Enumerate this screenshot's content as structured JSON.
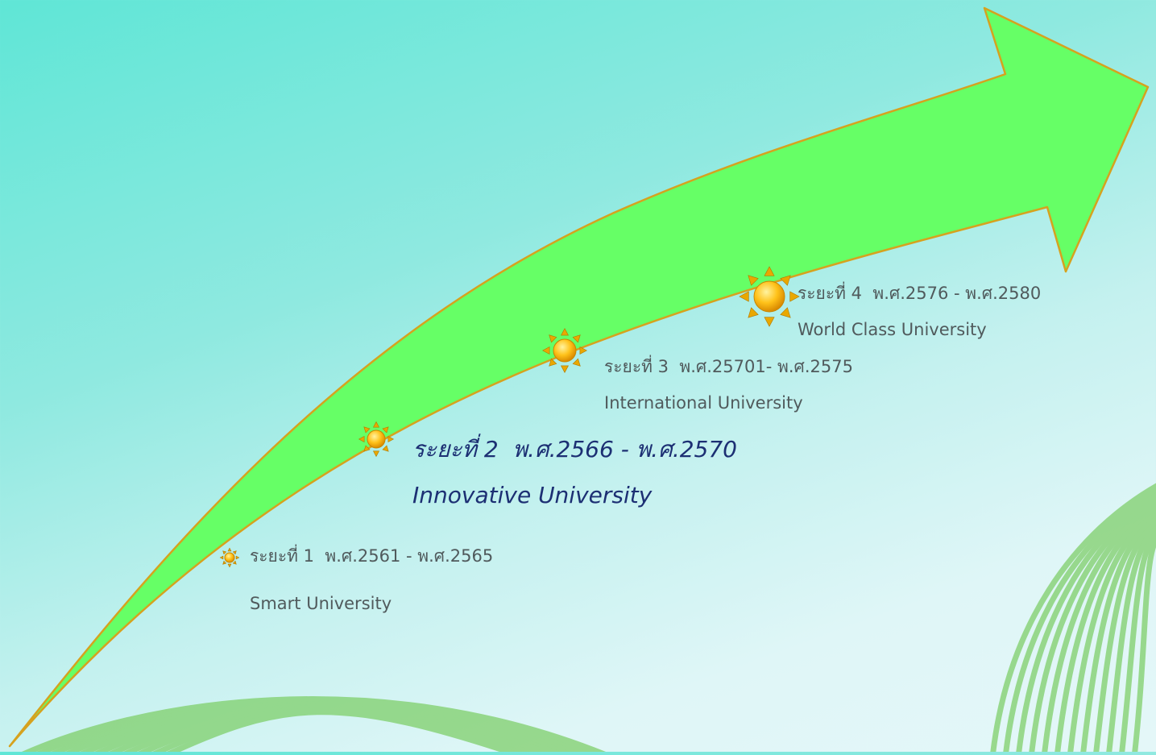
{
  "colors": {
    "arrow_fill": "#66ff66",
    "arrow_outline": "#d6a21e",
    "sun": "#ffc21a",
    "deco_lines": "#7fcf6a",
    "emphasis_text": "#1c2f73",
    "normal_text": "#505a5c"
  },
  "phases": [
    {
      "stage": "ระยะที่ 1",
      "years": "พ.ศ.2561  - พ.ศ.2565",
      "name": "Smart University",
      "icon": "sun-icon",
      "emphasis": false
    },
    {
      "stage": "ระยะที่ 2",
      "years": "พ.ศ.2566 - พ.ศ.2570",
      "name": "Innovative University",
      "icon": "sun-icon",
      "emphasis": true
    },
    {
      "stage": "ระยะที่ 3",
      "years": "พ.ศ.25701- พ.ศ.2575",
      "name": "International University",
      "icon": "sun-icon",
      "emphasis": false
    },
    {
      "stage": "ระยะที่ 4",
      "years": "พ.ศ.2576 - พ.ศ.2580",
      "name": "World Class University",
      "icon": "sun-icon",
      "emphasis": false
    }
  ]
}
